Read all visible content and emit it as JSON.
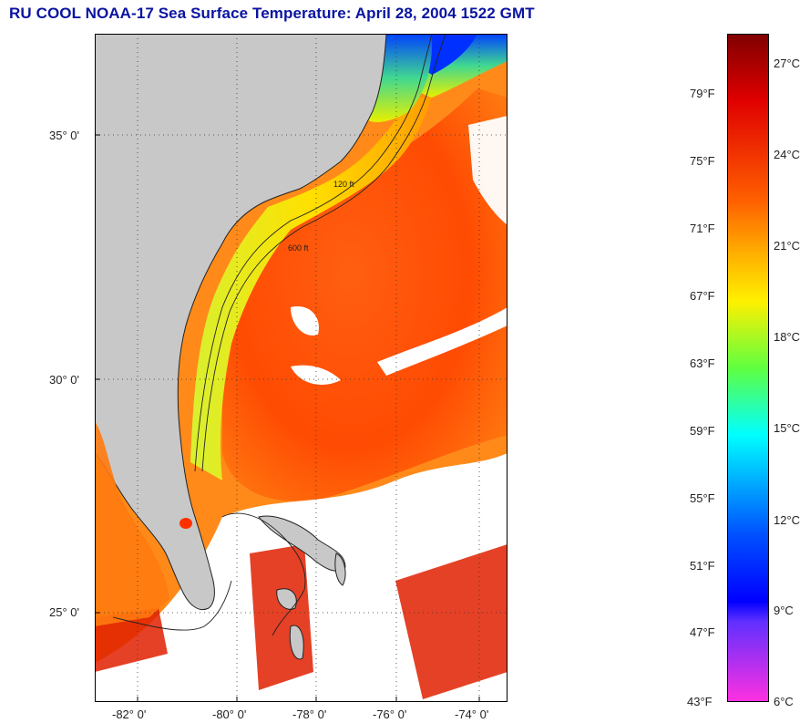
{
  "title": "RU COOL  NOAA-17  Sea Surface Temperature:  April 28, 2004 1522 GMT",
  "map": {
    "lat_labels": [
      "35° 0'",
      "30° 0'",
      "25° 0'"
    ],
    "lon_labels": [
      "-82° 0'",
      "-80° 0'",
      "-78° 0'",
      "-76° 0'",
      "-74° 0'"
    ],
    "isobath_labels": [
      "600 ft",
      "120 ft"
    ],
    "colors": {
      "land": "#c8c8c8",
      "cloud": "#ffffff",
      "gulf_stream": "#ff4800",
      "shelf": "#ffe000",
      "cold": "#0030ff"
    }
  },
  "colorbar": {
    "fahrenheit_labels": [
      "79°F",
      "75°F",
      "71°F",
      "67°F",
      "63°F",
      "59°F",
      "55°F",
      "51°F",
      "47°F",
      "43°F"
    ],
    "celsius_labels": [
      "27°C",
      "24°C",
      "21°C",
      "18°C",
      "15°C",
      "12°C",
      "9°C",
      "6°C"
    ]
  }
}
